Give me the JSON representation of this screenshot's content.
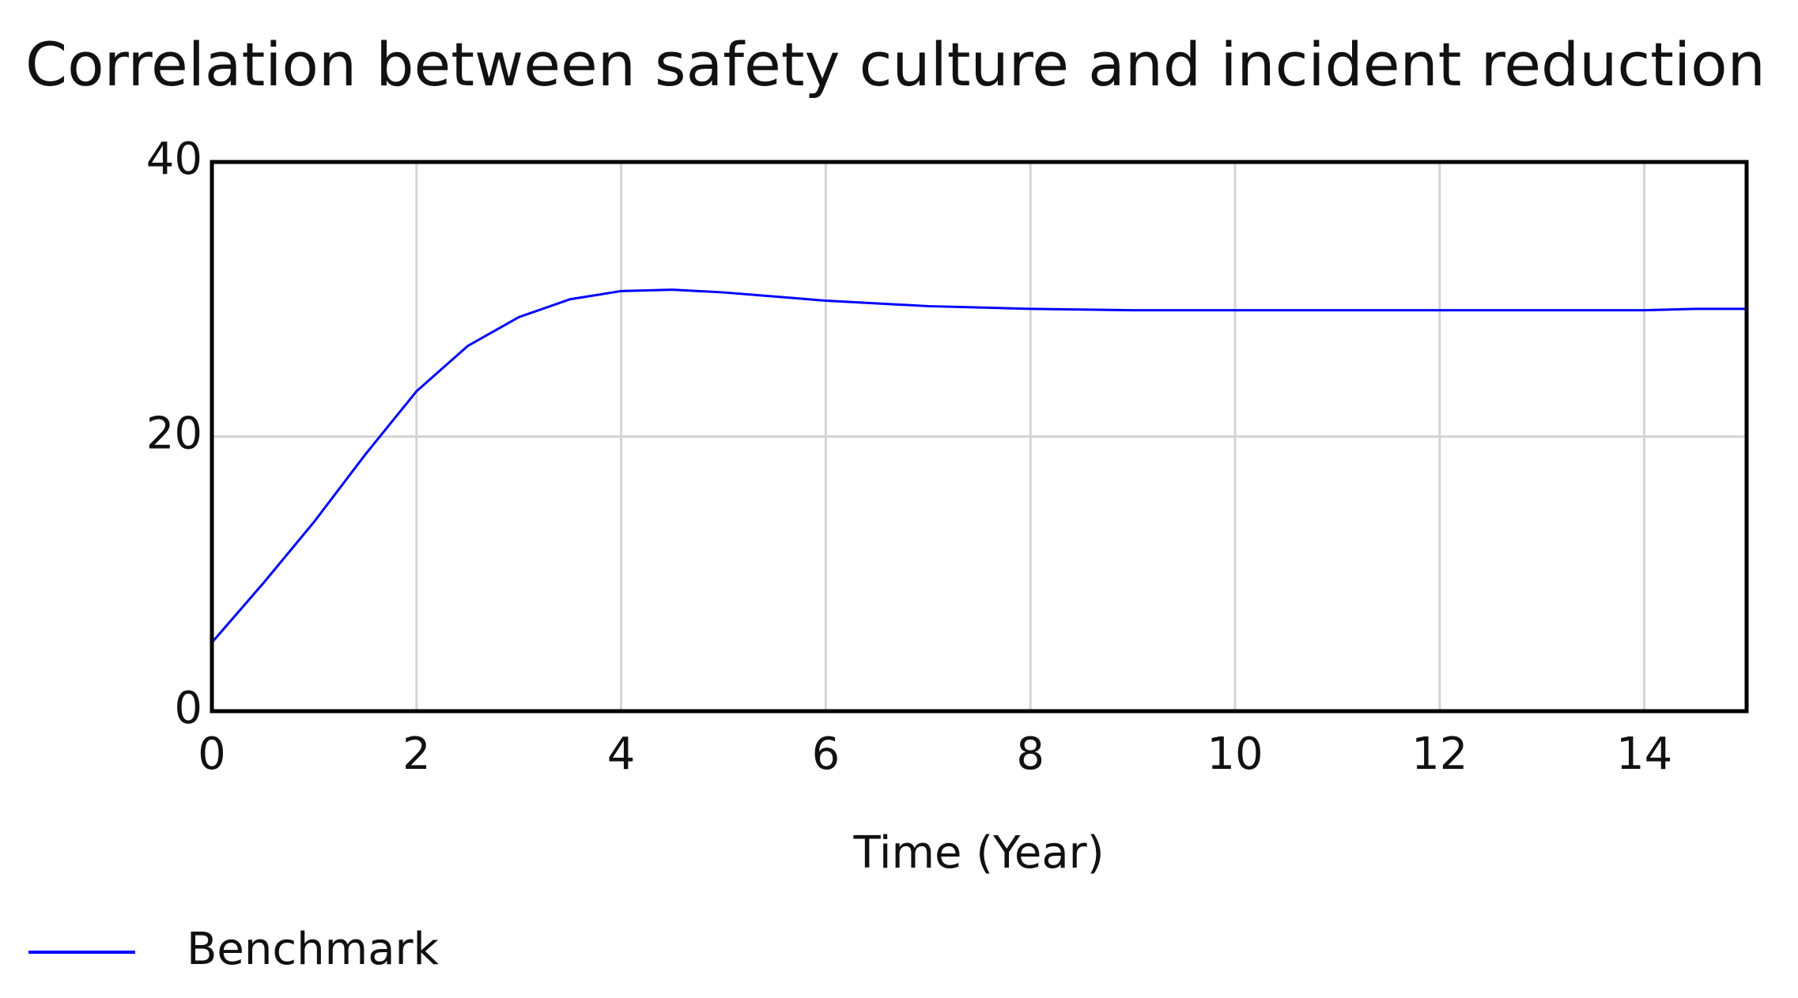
{
  "chart_data": {
    "type": "line",
    "title": "Correlation between safety culture and incident reduction",
    "x_label": "Time (Year)",
    "x": [
      0,
      0.5,
      1,
      1.5,
      2,
      2.5,
      3,
      3.5,
      4,
      4.5,
      5,
      5.5,
      6,
      6.5,
      7,
      7.5,
      8,
      8.5,
      9,
      9.5,
      10,
      10.5,
      11,
      11.5,
      12,
      12.5,
      13,
      13.5,
      14,
      14.5,
      15
    ],
    "series": [
      {
        "name": "Benchmark",
        "color": "#0000ff",
        "values": [
          5.0,
          9.3,
          13.8,
          18.7,
          23.3,
          26.6,
          28.7,
          30.0,
          30.6,
          30.7,
          30.5,
          30.2,
          29.9,
          29.7,
          29.5,
          29.4,
          29.3,
          29.25,
          29.2,
          29.2,
          29.2,
          29.2,
          29.2,
          29.2,
          29.2,
          29.2,
          29.2,
          29.2,
          29.2,
          29.3,
          29.3
        ]
      }
    ],
    "xlim": [
      0,
      15
    ],
    "xticks": [
      0,
      2,
      4,
      6,
      8,
      10,
      12,
      14
    ],
    "ylim": [
      0,
      40
    ],
    "yticks": [
      0,
      20,
      40
    ],
    "grid": true
  }
}
